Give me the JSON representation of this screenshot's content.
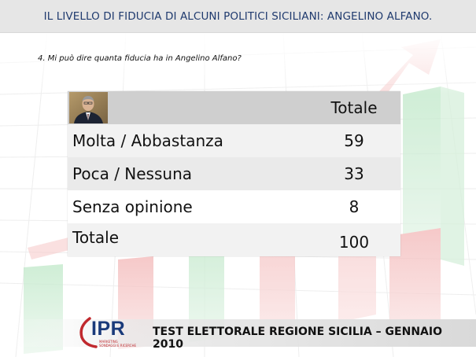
{
  "header": {
    "title": "IL LIVELLO DI FIDUCIA DI ALCUNI POLITICI SICILIANI: ANGELINO ALFANO."
  },
  "question": "4. Mi può dire quanta fiducia ha in  Angelino Alfano?",
  "table": {
    "column_header": "Totale",
    "rows": [
      {
        "label": "Molta  / Abbastanza",
        "value": "59"
      },
      {
        "label": "Poca / Nessuna",
        "value": "33"
      },
      {
        "label": "Senza opinione",
        "value": "8"
      },
      {
        "label": "Totale",
        "value": "100"
      }
    ]
  },
  "footer": {
    "logo_text": "IPR",
    "logo_tagline_1": "MARKETING",
    "logo_tagline_2": "SONDAGGI E RICERCHE",
    "text": "TEST ELETTORALE REGIONE SICILIA – GENNAIO 2010"
  },
  "colors": {
    "header_text": "#1f3a6e",
    "logo_blue": "#1a3a7a",
    "logo_red": "#c0282d"
  },
  "icons": [
    "portrait-photo",
    "ipr-logo"
  ]
}
